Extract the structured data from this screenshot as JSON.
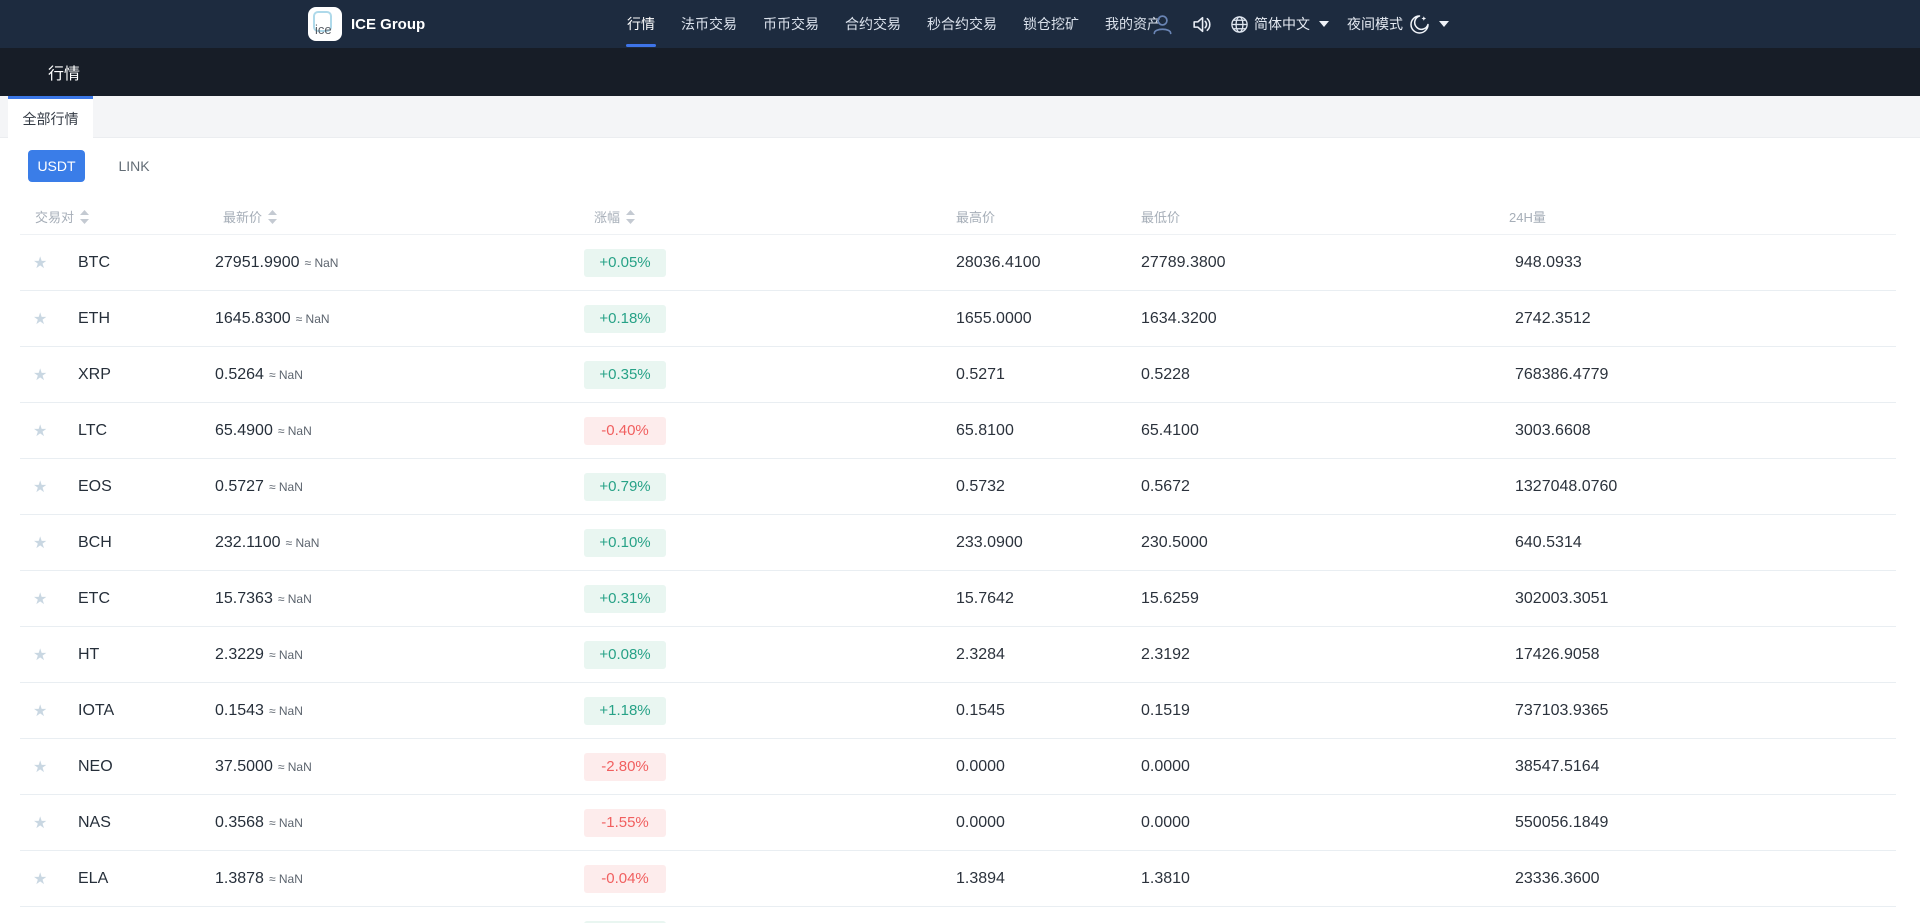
{
  "brand": {
    "logo_text": "ice",
    "name": "ICE Group"
  },
  "navbar": {
    "items": [
      {
        "label": "行情",
        "active": true
      },
      {
        "label": "法币交易",
        "active": false
      },
      {
        "label": "币币交易",
        "active": false
      },
      {
        "label": "合约交易",
        "active": false
      },
      {
        "label": "秒合约交易",
        "active": false
      },
      {
        "label": "锁仓挖矿",
        "active": false
      },
      {
        "label": "我的资产",
        "active": false
      }
    ],
    "language_label": "简体中文",
    "night_mode_label": "夜间模式"
  },
  "page": {
    "title": "行情",
    "tab": "全部行情"
  },
  "filters": {
    "usdt": "USDT",
    "link": "LINK"
  },
  "table": {
    "headers": [
      {
        "label": "交易对",
        "sortable": true
      },
      {
        "label": "最新价",
        "sortable": true
      },
      {
        "label": "涨幅",
        "sortable": true
      },
      {
        "label": "最高价",
        "sortable": false
      },
      {
        "label": "最低价",
        "sortable": false
      },
      {
        "label": "24H量",
        "sortable": false
      }
    ],
    "approx_label": "≈ NaN",
    "rows": [
      {
        "pair": "BTC",
        "price": "27951.9900",
        "change": "+0.05%",
        "dir": "up",
        "high": "28036.4100",
        "low": "27789.3800",
        "volume": "948.0933"
      },
      {
        "pair": "ETH",
        "price": "1645.8300",
        "change": "+0.18%",
        "dir": "up",
        "high": "1655.0000",
        "low": "1634.3200",
        "volume": "2742.3512"
      },
      {
        "pair": "XRP",
        "price": "0.5264",
        "change": "+0.35%",
        "dir": "up",
        "high": "0.5271",
        "low": "0.5228",
        "volume": "768386.4779"
      },
      {
        "pair": "LTC",
        "price": "65.4900",
        "change": "-0.40%",
        "dir": "down",
        "high": "65.8100",
        "low": "65.4100",
        "volume": "3003.6608"
      },
      {
        "pair": "EOS",
        "price": "0.5727",
        "change": "+0.79%",
        "dir": "up",
        "high": "0.5732",
        "low": "0.5672",
        "volume": "1327048.0760"
      },
      {
        "pair": "BCH",
        "price": "232.1100",
        "change": "+0.10%",
        "dir": "up",
        "high": "233.0900",
        "low": "230.5000",
        "volume": "640.5314"
      },
      {
        "pair": "ETC",
        "price": "15.7363",
        "change": "+0.31%",
        "dir": "up",
        "high": "15.7642",
        "low": "15.6259",
        "volume": "302003.3051"
      },
      {
        "pair": "HT",
        "price": "2.3229",
        "change": "+0.08%",
        "dir": "up",
        "high": "2.3284",
        "low": "2.3192",
        "volume": "17426.9058"
      },
      {
        "pair": "IOTA",
        "price": "0.1543",
        "change": "+1.18%",
        "dir": "up",
        "high": "0.1545",
        "low": "0.1519",
        "volume": "737103.9365"
      },
      {
        "pair": "NEO",
        "price": "37.5000",
        "change": "-2.80%",
        "dir": "down",
        "high": "0.0000",
        "low": "0.0000",
        "volume": "38547.5164"
      },
      {
        "pair": "NAS",
        "price": "0.3568",
        "change": "-1.55%",
        "dir": "down",
        "high": "0.0000",
        "low": "0.0000",
        "volume": "550056.1849"
      },
      {
        "pair": "ELA",
        "price": "1.3878",
        "change": "-0.04%",
        "dir": "down",
        "high": "1.3894",
        "low": "1.3810",
        "volume": "23336.3600"
      }
    ],
    "partial_row": {
      "dir": "up"
    }
  },
  "colors": {
    "navbar_bg": "#1d2b3f",
    "title_bar_bg": "#171d27",
    "accent_blue": "#3b77e6",
    "up_green": "#27a287",
    "down_red": "#f15f5f",
    "star_gray": "#c9d7e2"
  }
}
